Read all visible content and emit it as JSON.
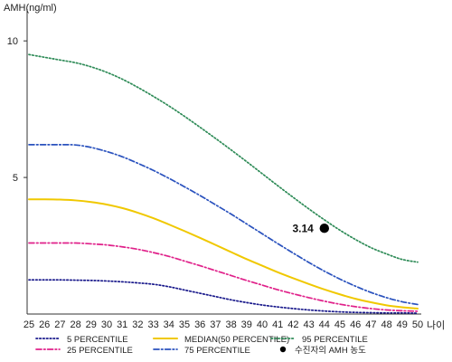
{
  "chart_data": {
    "type": "line",
    "ylabel": "AMH(ng/ml)",
    "xlabel": "나이",
    "x": [
      25,
      26,
      27,
      28,
      29,
      30,
      31,
      32,
      33,
      34,
      35,
      36,
      37,
      38,
      39,
      40,
      41,
      42,
      43,
      44,
      45,
      46,
      47,
      48,
      49,
      50
    ],
    "x_tick_labels": [
      "25",
      "26",
      "27",
      "28",
      "29",
      "30",
      "31",
      "32",
      "33",
      "34",
      "35",
      "36",
      "37",
      "38",
      "39",
      "40",
      "41",
      "42",
      "43",
      "44",
      "45",
      "46",
      "47",
      "48",
      "49",
      "50"
    ],
    "y_ticks": [
      5,
      10
    ],
    "y_tick_labels": [
      "5",
      "10"
    ],
    "ylim": [
      0,
      11
    ],
    "xlim": [
      25,
      50
    ],
    "grid": false,
    "legend_position": "bottom",
    "series": [
      {
        "name": "5 PERCENTILE",
        "color": "#1a1a8c",
        "style": "dotted",
        "values": [
          1.25,
          1.25,
          1.25,
          1.24,
          1.23,
          1.21,
          1.18,
          1.14,
          1.09,
          1.0,
          0.88,
          0.76,
          0.64,
          0.52,
          0.42,
          0.33,
          0.26,
          0.2,
          0.15,
          0.11,
          0.08,
          0.06,
          0.05,
          0.04,
          0.04,
          0.03
        ]
      },
      {
        "name": "25 PERCENTILE",
        "color": "#e0218a",
        "style": "dashdot",
        "values": [
          2.6,
          2.6,
          2.6,
          2.6,
          2.57,
          2.53,
          2.46,
          2.37,
          2.25,
          2.11,
          1.94,
          1.77,
          1.59,
          1.41,
          1.23,
          1.06,
          0.89,
          0.74,
          0.6,
          0.47,
          0.36,
          0.27,
          0.2,
          0.15,
          0.12,
          0.1
        ]
      },
      {
        "name": "MEDIAN(50 PERCENTILE)",
        "color": "#f0c800",
        "style": "solid",
        "values": [
          4.2,
          4.2,
          4.19,
          4.16,
          4.1,
          4.01,
          3.88,
          3.71,
          3.51,
          3.28,
          3.04,
          2.79,
          2.53,
          2.27,
          2.01,
          1.77,
          1.53,
          1.31,
          1.1,
          0.9,
          0.72,
          0.56,
          0.43,
          0.32,
          0.25,
          0.2
        ]
      },
      {
        "name": "75 PERCENTILE",
        "color": "#2a52be",
        "style": "dashdot",
        "values": [
          6.2,
          6.2,
          6.2,
          6.19,
          6.1,
          5.95,
          5.76,
          5.52,
          5.26,
          4.97,
          4.66,
          4.34,
          4.0,
          3.66,
          3.3,
          2.94,
          2.58,
          2.23,
          1.89,
          1.57,
          1.28,
          1.02,
          0.79,
          0.6,
          0.45,
          0.35
        ]
      },
      {
        "name": "95 PERCENTILE",
        "color": "#2e8b57",
        "style": "dotted",
        "values": [
          9.5,
          9.4,
          9.3,
          9.2,
          9.05,
          8.85,
          8.6,
          8.3,
          7.97,
          7.62,
          7.24,
          6.84,
          6.43,
          6.01,
          5.58,
          5.14,
          4.7,
          4.27,
          3.85,
          3.45,
          3.07,
          2.73,
          2.43,
          2.2,
          2.0,
          1.9
        ]
      }
    ],
    "marker": {
      "x": 44,
      "y": 3.14,
      "label": "3.14",
      "legend_label": "수진자의 AMH 농도",
      "color": "#000000"
    },
    "legend_order": [
      "5 PERCENTILE",
      "25 PERCENTILE",
      "MEDIAN(50 PERCENTILE)",
      "75 PERCENTILE",
      "95 PERCENTILE",
      "수진자의 AMH 농도"
    ]
  }
}
